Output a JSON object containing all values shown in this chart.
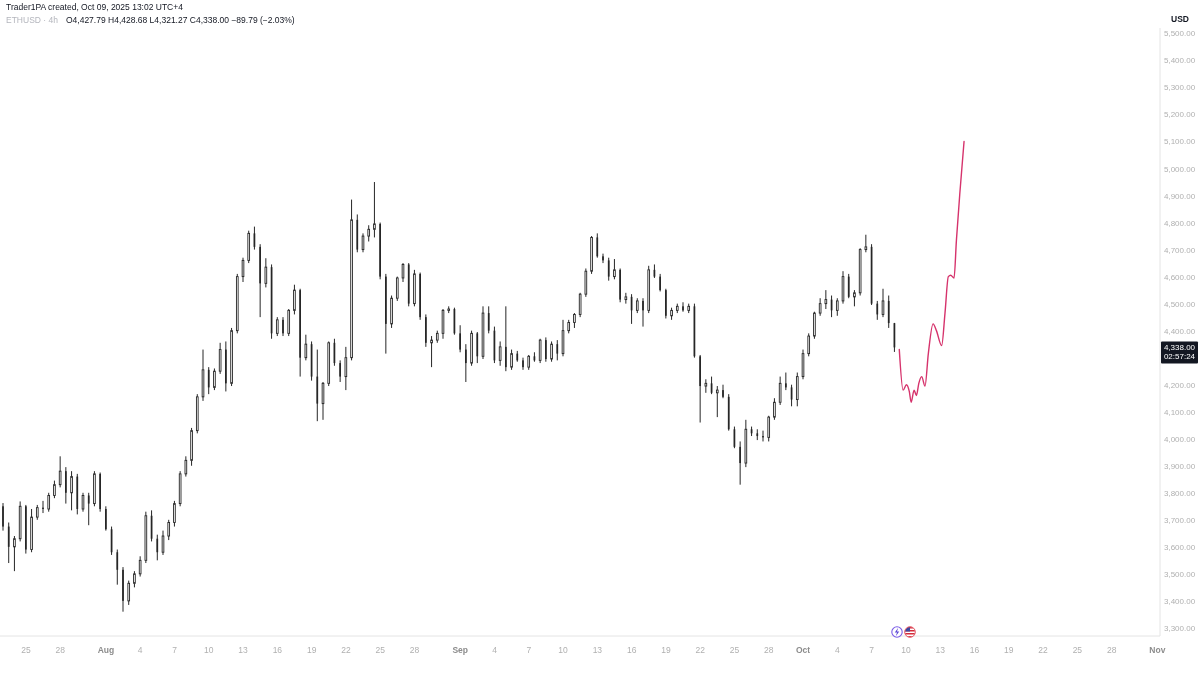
{
  "chart_data": {
    "type": "candlestick",
    "title": "ETHUSD · 4h",
    "subtitle": "O4,427.79 H4,428.68 L4,321.27 C4,338.00 −89.79 (−2.03%)",
    "ylabel": "USD",
    "annotations": [
      "Trader1PA created, Oct 09, 2025 13:02 UTC+4",
      "4,338.00",
      "02:57:24"
    ],
    "color": "#262626",
    "x": [
      "2025-07-23T00:00",
      "2025-07-23T12:00",
      "2025-07-24T00:00",
      "2025-07-24T12:00",
      "2025-07-25T00:00",
      "2025-07-25T12:00",
      "2025-07-26T00:00",
      "2025-07-26T12:00",
      "2025-07-27T00:00",
      "2025-07-27T12:00",
      "2025-07-28T00:00",
      "2025-07-28T12:00",
      "2025-07-29T00:00",
      "2025-07-29T12:00",
      "2025-07-30T00:00",
      "2025-07-30T12:00",
      "2025-07-31T00:00",
      "2025-07-31T12:00",
      "2025-08-01T00:00",
      "2025-08-01T12:00",
      "2025-08-02T00:00",
      "2025-08-02T12:00",
      "2025-08-03T00:00",
      "2025-08-03T12:00",
      "2025-08-04T00:00",
      "2025-08-04T12:00",
      "2025-08-05T00:00",
      "2025-08-05T12:00",
      "2025-08-06T00:00",
      "2025-08-06T12:00",
      "2025-08-07T00:00",
      "2025-08-07T12:00",
      "2025-08-08T00:00",
      "2025-08-08T12:00",
      "2025-08-09T00:00",
      "2025-08-09T12:00",
      "2025-08-10T00:00",
      "2025-08-10T12:00",
      "2025-08-11T00:00",
      "2025-08-11T12:00",
      "2025-08-12T00:00",
      "2025-08-12T12:00",
      "2025-08-13T00:00",
      "2025-08-13T12:00",
      "2025-08-14T00:00",
      "2025-08-14T12:00",
      "2025-08-15T00:00",
      "2025-08-15T12:00",
      "2025-08-16T00:00",
      "2025-08-16T12:00",
      "2025-08-17T00:00",
      "2025-08-17T12:00",
      "2025-08-18T00:00",
      "2025-08-18T12:00",
      "2025-08-19T00:00",
      "2025-08-19T12:00",
      "2025-08-20T00:00",
      "2025-08-20T12:00",
      "2025-08-21T00:00",
      "2025-08-21T12:00",
      "2025-08-22T00:00",
      "2025-08-22T12:00",
      "2025-08-23T00:00",
      "2025-08-23T12:00",
      "2025-08-24T00:00",
      "2025-08-24T12:00",
      "2025-08-25T00:00",
      "2025-08-25T12:00",
      "2025-08-26T00:00",
      "2025-08-26T12:00",
      "2025-08-27T00:00",
      "2025-08-27T12:00",
      "2025-08-28T00:00",
      "2025-08-28T12:00",
      "2025-08-29T00:00",
      "2025-08-29T12:00",
      "2025-08-30T00:00",
      "2025-08-30T12:00",
      "2025-08-31T00:00",
      "2025-08-31T12:00",
      "2025-09-01T00:00",
      "2025-09-01T12:00",
      "2025-09-02T00:00",
      "2025-09-02T12:00",
      "2025-09-03T00:00",
      "2025-09-03T12:00",
      "2025-09-04T00:00",
      "2025-09-04T12:00",
      "2025-09-05T00:00",
      "2025-09-05T12:00",
      "2025-09-06T00:00",
      "2025-09-06T12:00",
      "2025-09-07T00:00",
      "2025-09-07T12:00",
      "2025-09-08T00:00",
      "2025-09-08T12:00",
      "2025-09-09T00:00",
      "2025-09-09T12:00",
      "2025-09-10T00:00",
      "2025-09-10T12:00",
      "2025-09-11T00:00",
      "2025-09-11T12:00",
      "2025-09-12T00:00",
      "2025-09-12T12:00",
      "2025-09-13T00:00",
      "2025-09-13T12:00",
      "2025-09-14T00:00",
      "2025-09-14T12:00",
      "2025-09-15T00:00",
      "2025-09-15T12:00",
      "2025-09-16T00:00",
      "2025-09-16T12:00",
      "2025-09-17T00:00",
      "2025-09-17T12:00",
      "2025-09-18T00:00",
      "2025-09-18T12:00",
      "2025-09-19T00:00",
      "2025-09-19T12:00",
      "2025-09-20T00:00",
      "2025-09-20T12:00",
      "2025-09-21T00:00",
      "2025-09-21T12:00",
      "2025-09-22T00:00",
      "2025-09-22T12:00",
      "2025-09-23T00:00",
      "2025-09-23T12:00",
      "2025-09-24T00:00",
      "2025-09-24T12:00",
      "2025-09-25T00:00",
      "2025-09-25T12:00",
      "2025-09-26T00:00",
      "2025-09-26T12:00",
      "2025-09-27T00:00",
      "2025-09-27T12:00",
      "2025-09-28T00:00",
      "2025-09-28T12:00",
      "2025-09-29T00:00",
      "2025-09-29T12:00",
      "2025-09-30T00:00",
      "2025-09-30T12:00",
      "2025-10-01T00:00",
      "2025-10-01T12:00",
      "2025-10-02T00:00",
      "2025-10-02T12:00",
      "2025-10-03T00:00",
      "2025-10-03T12:00",
      "2025-10-04T00:00",
      "2025-10-04T12:00",
      "2025-10-05T00:00",
      "2025-10-05T12:00",
      "2025-10-06T00:00",
      "2025-10-06T12:00",
      "2025-10-07T00:00",
      "2025-10-07T12:00",
      "2025-10-08T00:00",
      "2025-10-08T12:00",
      "2025-10-09T00:00"
    ],
    "ohlc": [
      [
        3750,
        3762,
        3660,
        3675
      ],
      [
        3675,
        3690,
        3540,
        3600
      ],
      [
        3600,
        3640,
        3510,
        3630
      ],
      [
        3630,
        3768,
        3620,
        3750
      ],
      [
        3750,
        3755,
        3575,
        3590
      ],
      [
        3590,
        3740,
        3580,
        3710
      ],
      [
        3710,
        3755,
        3700,
        3745
      ],
      [
        3745,
        3770,
        3725,
        3740
      ],
      [
        3740,
        3800,
        3730,
        3790
      ],
      [
        3790,
        3845,
        3780,
        3830
      ],
      [
        3830,
        3935,
        3820,
        3880
      ],
      [
        3880,
        3895,
        3760,
        3800
      ],
      [
        3800,
        3880,
        3735,
        3860
      ],
      [
        3860,
        3870,
        3720,
        3740
      ],
      [
        3740,
        3800,
        3730,
        3790
      ],
      [
        3790,
        3800,
        3680,
        3760
      ],
      [
        3760,
        3880,
        3750,
        3870
      ],
      [
        3870,
        3875,
        3730,
        3740
      ],
      [
        3740,
        3750,
        3660,
        3665
      ],
      [
        3665,
        3675,
        3570,
        3580
      ],
      [
        3580,
        3590,
        3460,
        3515
      ],
      [
        3515,
        3525,
        3360,
        3400
      ],
      [
        3400,
        3475,
        3385,
        3465
      ],
      [
        3465,
        3510,
        3450,
        3500
      ],
      [
        3500,
        3565,
        3490,
        3550
      ],
      [
        3550,
        3730,
        3540,
        3715
      ],
      [
        3715,
        3735,
        3620,
        3630
      ],
      [
        3630,
        3645,
        3550,
        3580
      ],
      [
        3580,
        3660,
        3570,
        3640
      ],
      [
        3640,
        3700,
        3625,
        3690
      ],
      [
        3690,
        3770,
        3675,
        3760
      ],
      [
        3760,
        3880,
        3750,
        3870
      ],
      [
        3870,
        3935,
        3860,
        3920
      ],
      [
        3920,
        4040,
        3900,
        4030
      ],
      [
        4030,
        4165,
        4020,
        4155
      ],
      [
        4155,
        4330,
        4140,
        4255
      ],
      [
        4255,
        4265,
        4165,
        4190
      ],
      [
        4190,
        4260,
        4180,
        4250
      ],
      [
        4250,
        4355,
        4240,
        4330
      ],
      [
        4330,
        4360,
        4175,
        4205
      ],
      [
        4205,
        4410,
        4195,
        4400
      ],
      [
        4400,
        4610,
        4390,
        4600
      ],
      [
        4600,
        4670,
        4580,
        4660
      ],
      [
        4660,
        4770,
        4650,
        4760
      ],
      [
        4760,
        4785,
        4700,
        4710
      ],
      [
        4710,
        4720,
        4450,
        4575
      ],
      [
        4575,
        4668,
        4560,
        4635
      ],
      [
        4635,
        4645,
        4370,
        4390
      ],
      [
        4390,
        4450,
        4380,
        4440
      ],
      [
        4440,
        4450,
        4380,
        4390
      ],
      [
        4390,
        4480,
        4380,
        4475
      ],
      [
        4475,
        4570,
        4460,
        4550
      ],
      [
        4550,
        4555,
        4230,
        4300
      ],
      [
        4300,
        4385,
        4290,
        4350
      ],
      [
        4350,
        4360,
        4215,
        4230
      ],
      [
        4230,
        4330,
        4065,
        4130
      ],
      [
        4130,
        4210,
        4070,
        4205
      ],
      [
        4205,
        4360,
        4195,
        4355
      ],
      [
        4355,
        4370,
        4270,
        4280
      ],
      [
        4280,
        4290,
        4210,
        4230
      ],
      [
        4230,
        4340,
        4180,
        4300
      ],
      [
        4300,
        4885,
        4290,
        4810
      ],
      [
        4810,
        4830,
        4690,
        4700
      ],
      [
        4700,
        4760,
        4690,
        4750
      ],
      [
        4750,
        4790,
        4730,
        4775
      ],
      [
        4775,
        4950,
        4745,
        4795
      ],
      [
        4795,
        4800,
        4590,
        4600
      ],
      [
        4600,
        4610,
        4315,
        4425
      ],
      [
        4425,
        4530,
        4410,
        4520
      ],
      [
        4520,
        4600,
        4510,
        4595
      ],
      [
        4595,
        4650,
        4580,
        4645
      ],
      [
        4645,
        4650,
        4490,
        4500
      ],
      [
        4500,
        4625,
        4490,
        4610
      ],
      [
        4610,
        4615,
        4440,
        4450
      ],
      [
        4450,
        4460,
        4340,
        4355
      ],
      [
        4355,
        4380,
        4265,
        4365
      ],
      [
        4365,
        4400,
        4355,
        4390
      ],
      [
        4390,
        4480,
        4370,
        4475
      ],
      [
        4475,
        4490,
        4465,
        4480
      ],
      [
        4480,
        4485,
        4385,
        4390
      ],
      [
        4390,
        4420,
        4320,
        4330
      ],
      [
        4330,
        4350,
        4210,
        4280
      ],
      [
        4280,
        4400,
        4270,
        4390
      ],
      [
        4390,
        4395,
        4280,
        4305
      ],
      [
        4305,
        4490,
        4295,
        4465
      ],
      [
        4465,
        4490,
        4390,
        4400
      ],
      [
        4400,
        4415,
        4280,
        4290
      ],
      [
        4290,
        4360,
        4270,
        4340
      ],
      [
        4340,
        4490,
        4250,
        4265
      ],
      [
        4265,
        4330,
        4255,
        4315
      ],
      [
        4315,
        4325,
        4285,
        4290
      ],
      [
        4290,
        4300,
        4255,
        4265
      ],
      [
        4265,
        4310,
        4255,
        4305
      ],
      [
        4305,
        4320,
        4285,
        4290
      ],
      [
        4290,
        4370,
        4280,
        4365
      ],
      [
        4365,
        4375,
        4285,
        4295
      ],
      [
        4295,
        4360,
        4285,
        4350
      ],
      [
        4350,
        4365,
        4290,
        4315
      ],
      [
        4315,
        4440,
        4305,
        4400
      ],
      [
        4400,
        4440,
        4390,
        4430
      ],
      [
        4430,
        4465,
        4410,
        4460
      ],
      [
        4460,
        4540,
        4450,
        4535
      ],
      [
        4535,
        4630,
        4525,
        4620
      ],
      [
        4620,
        4750,
        4610,
        4745
      ],
      [
        4745,
        4760,
        4670,
        4675
      ],
      [
        4675,
        4685,
        4650,
        4660
      ],
      [
        4660,
        4670,
        4585,
        4600
      ],
      [
        4600,
        4665,
        4590,
        4625
      ],
      [
        4625,
        4630,
        4505,
        4515
      ],
      [
        4515,
        4540,
        4500,
        4525
      ],
      [
        4525,
        4535,
        4425,
        4475
      ],
      [
        4475,
        4520,
        4465,
        4510
      ],
      [
        4510,
        4520,
        4415,
        4475
      ],
      [
        4475,
        4640,
        4465,
        4625
      ],
      [
        4625,
        4645,
        4595,
        4600
      ],
      [
        4600,
        4610,
        4545,
        4550
      ],
      [
        4550,
        4555,
        4445,
        4455
      ],
      [
        4455,
        4485,
        4440,
        4475
      ],
      [
        4475,
        4500,
        4465,
        4490
      ],
      [
        4490,
        4505,
        4470,
        4475
      ],
      [
        4475,
        4500,
        4465,
        4490
      ],
      [
        4490,
        4500,
        4300,
        4305
      ],
      [
        4305,
        4310,
        4060,
        4195
      ],
      [
        4195,
        4220,
        4170,
        4205
      ],
      [
        4205,
        4230,
        4165,
        4170
      ],
      [
        4170,
        4195,
        4080,
        4180
      ],
      [
        4180,
        4200,
        4150,
        4155
      ],
      [
        4155,
        4165,
        4030,
        4035
      ],
      [
        4035,
        4045,
        3965,
        3970
      ],
      [
        3970,
        3990,
        3830,
        3910
      ],
      [
        3910,
        4070,
        3895,
        4035
      ],
      [
        4035,
        4045,
        4010,
        4020
      ],
      [
        4020,
        4035,
        3995,
        4010
      ],
      [
        4010,
        4030,
        3990,
        4005
      ],
      [
        4005,
        4085,
        3990,
        4080
      ],
      [
        4080,
        4150,
        4070,
        4135
      ],
      [
        4135,
        4230,
        4125,
        4205
      ],
      [
        4205,
        4245,
        4180,
        4190
      ],
      [
        4190,
        4200,
        4120,
        4145
      ],
      [
        4145,
        4245,
        4120,
        4230
      ],
      [
        4230,
        4330,
        4220,
        4315
      ],
      [
        4315,
        4390,
        4305,
        4380
      ],
      [
        4380,
        4470,
        4370,
        4465
      ],
      [
        4465,
        4520,
        4455,
        4500
      ],
      [
        4500,
        4550,
        4480,
        4515
      ],
      [
        4515,
        4530,
        4450,
        4475
      ],
      [
        4475,
        4520,
        4455,
        4510
      ],
      [
        4510,
        4620,
        4500,
        4600
      ],
      [
        4600,
        4610,
        4520,
        4525
      ],
      [
        4525,
        4550,
        4490,
        4540
      ],
      [
        4540,
        4705,
        4530,
        4700
      ],
      [
        4700,
        4755,
        4690,
        4710
      ],
      [
        4710,
        4720,
        4495,
        4500
      ],
      [
        4500,
        4510,
        4440,
        4460
      ],
      [
        4460,
        4555,
        4450,
        4510
      ],
      [
        4510,
        4530,
        4410,
        4428
      ],
      [
        4427.79,
        4428.68,
        4321.27,
        4338
      ]
    ],
    "series": [
      {
        "type": "line",
        "color": "#d6336c",
        "x": [
          "2025-10-09T10:00",
          "2025-10-09T18:00",
          "2025-10-10T01:00",
          "2025-10-10T07:00",
          "2025-10-10T11:00",
          "2025-10-10T17:00",
          "2025-10-10T22:00",
          "2025-10-11T03:00",
          "2025-10-11T09:00",
          "2025-10-11T16:00",
          "2025-10-11T23:00",
          "2025-10-12T09:00",
          "2025-10-12T16:00",
          "2025-10-13T03:00",
          "2025-10-13T10:00",
          "2025-10-13T17:00",
          "2025-10-13T22:00",
          "2025-10-14T05:00",
          "2025-10-14T10:00",
          "2025-10-14T17:00",
          "2025-10-15T02:00"
        ],
        "values": [
          4330,
          4180,
          4200,
          4175,
          4135,
          4180,
          4160,
          4205,
          4230,
          4195,
          4315,
          4425,
          4400,
          4345,
          4465,
          4600,
          4605,
          4595,
          4735,
          4905,
          5100
        ]
      }
    ],
    "xlim": [
      "2025-07-22T17:30",
      "2025-11-01T05:30"
    ],
    "xticks": [
      {
        "value": "2025-07-25",
        "label": "25"
      },
      {
        "value": "2025-07-28",
        "label": "28"
      },
      {
        "value": "2025-08-01",
        "label": "Aug"
      },
      {
        "value": "2025-08-04",
        "label": "4"
      },
      {
        "value": "2025-08-07",
        "label": "7"
      },
      {
        "value": "2025-08-10",
        "label": "10"
      },
      {
        "value": "2025-08-13",
        "label": "13"
      },
      {
        "value": "2025-08-16",
        "label": "16"
      },
      {
        "value": "2025-08-19",
        "label": "19"
      },
      {
        "value": "2025-08-22",
        "label": "22"
      },
      {
        "value": "2025-08-25",
        "label": "25"
      },
      {
        "value": "2025-08-28",
        "label": "28"
      },
      {
        "value": "2025-09-01",
        "label": "Sep"
      },
      {
        "value": "2025-09-04",
        "label": "4"
      },
      {
        "value": "2025-09-07",
        "label": "7"
      },
      {
        "value": "2025-09-10",
        "label": "10"
      },
      {
        "value": "2025-09-13",
        "label": "13"
      },
      {
        "value": "2025-09-16",
        "label": "16"
      },
      {
        "value": "2025-09-19",
        "label": "19"
      },
      {
        "value": "2025-09-22",
        "label": "22"
      },
      {
        "value": "2025-09-25",
        "label": "25"
      },
      {
        "value": "2025-09-28",
        "label": "28"
      },
      {
        "value": "2025-10-01",
        "label": "Oct"
      },
      {
        "value": "2025-10-04",
        "label": "4"
      },
      {
        "value": "2025-10-07",
        "label": "7"
      },
      {
        "value": "2025-10-10",
        "label": "10"
      },
      {
        "value": "2025-10-13",
        "label": "13"
      },
      {
        "value": "2025-10-16",
        "label": "16"
      },
      {
        "value": "2025-10-19",
        "label": "19"
      },
      {
        "value": "2025-10-22",
        "label": "22"
      },
      {
        "value": "2025-10-25",
        "label": "25"
      },
      {
        "value": "2025-10-28",
        "label": "28"
      },
      {
        "value": "2025-11-01",
        "label": "Nov"
      }
    ],
    "ylim": [
      3270,
      5520
    ],
    "yticks": [
      {
        "value": 3300,
        "label": "3,300.00"
      },
      {
        "value": 3400,
        "label": "3,400.00"
      },
      {
        "value": 3500,
        "label": "3,500.00"
      },
      {
        "value": 3600,
        "label": "3,600.00"
      },
      {
        "value": 3700,
        "label": "3,700.00"
      },
      {
        "value": 3800,
        "label": "3,800.00"
      },
      {
        "value": 3900,
        "label": "3,900.00"
      },
      {
        "value": 4000,
        "label": "4,000.00"
      },
      {
        "value": 4100,
        "label": "4,100.00"
      },
      {
        "value": 4200,
        "label": "4,200.00"
      },
      {
        "value": 4400,
        "label": "4,400.00"
      },
      {
        "value": 4500,
        "label": "4,500.00"
      },
      {
        "value": 4600,
        "label": "4,600.00"
      },
      {
        "value": 4700,
        "label": "4,700.00"
      },
      {
        "value": 4800,
        "label": "4,800.00"
      },
      {
        "value": 4900,
        "label": "4,900.00"
      },
      {
        "value": 5000,
        "label": "5,000.00"
      },
      {
        "value": 5100,
        "label": "5,100.00"
      },
      {
        "value": 5200,
        "label": "5,200.00"
      },
      {
        "value": 5300,
        "label": "5,300.00"
      },
      {
        "value": 5400,
        "label": "5,400.00"
      },
      {
        "value": 5500,
        "label": "5,500.00"
      }
    ]
  }
}
